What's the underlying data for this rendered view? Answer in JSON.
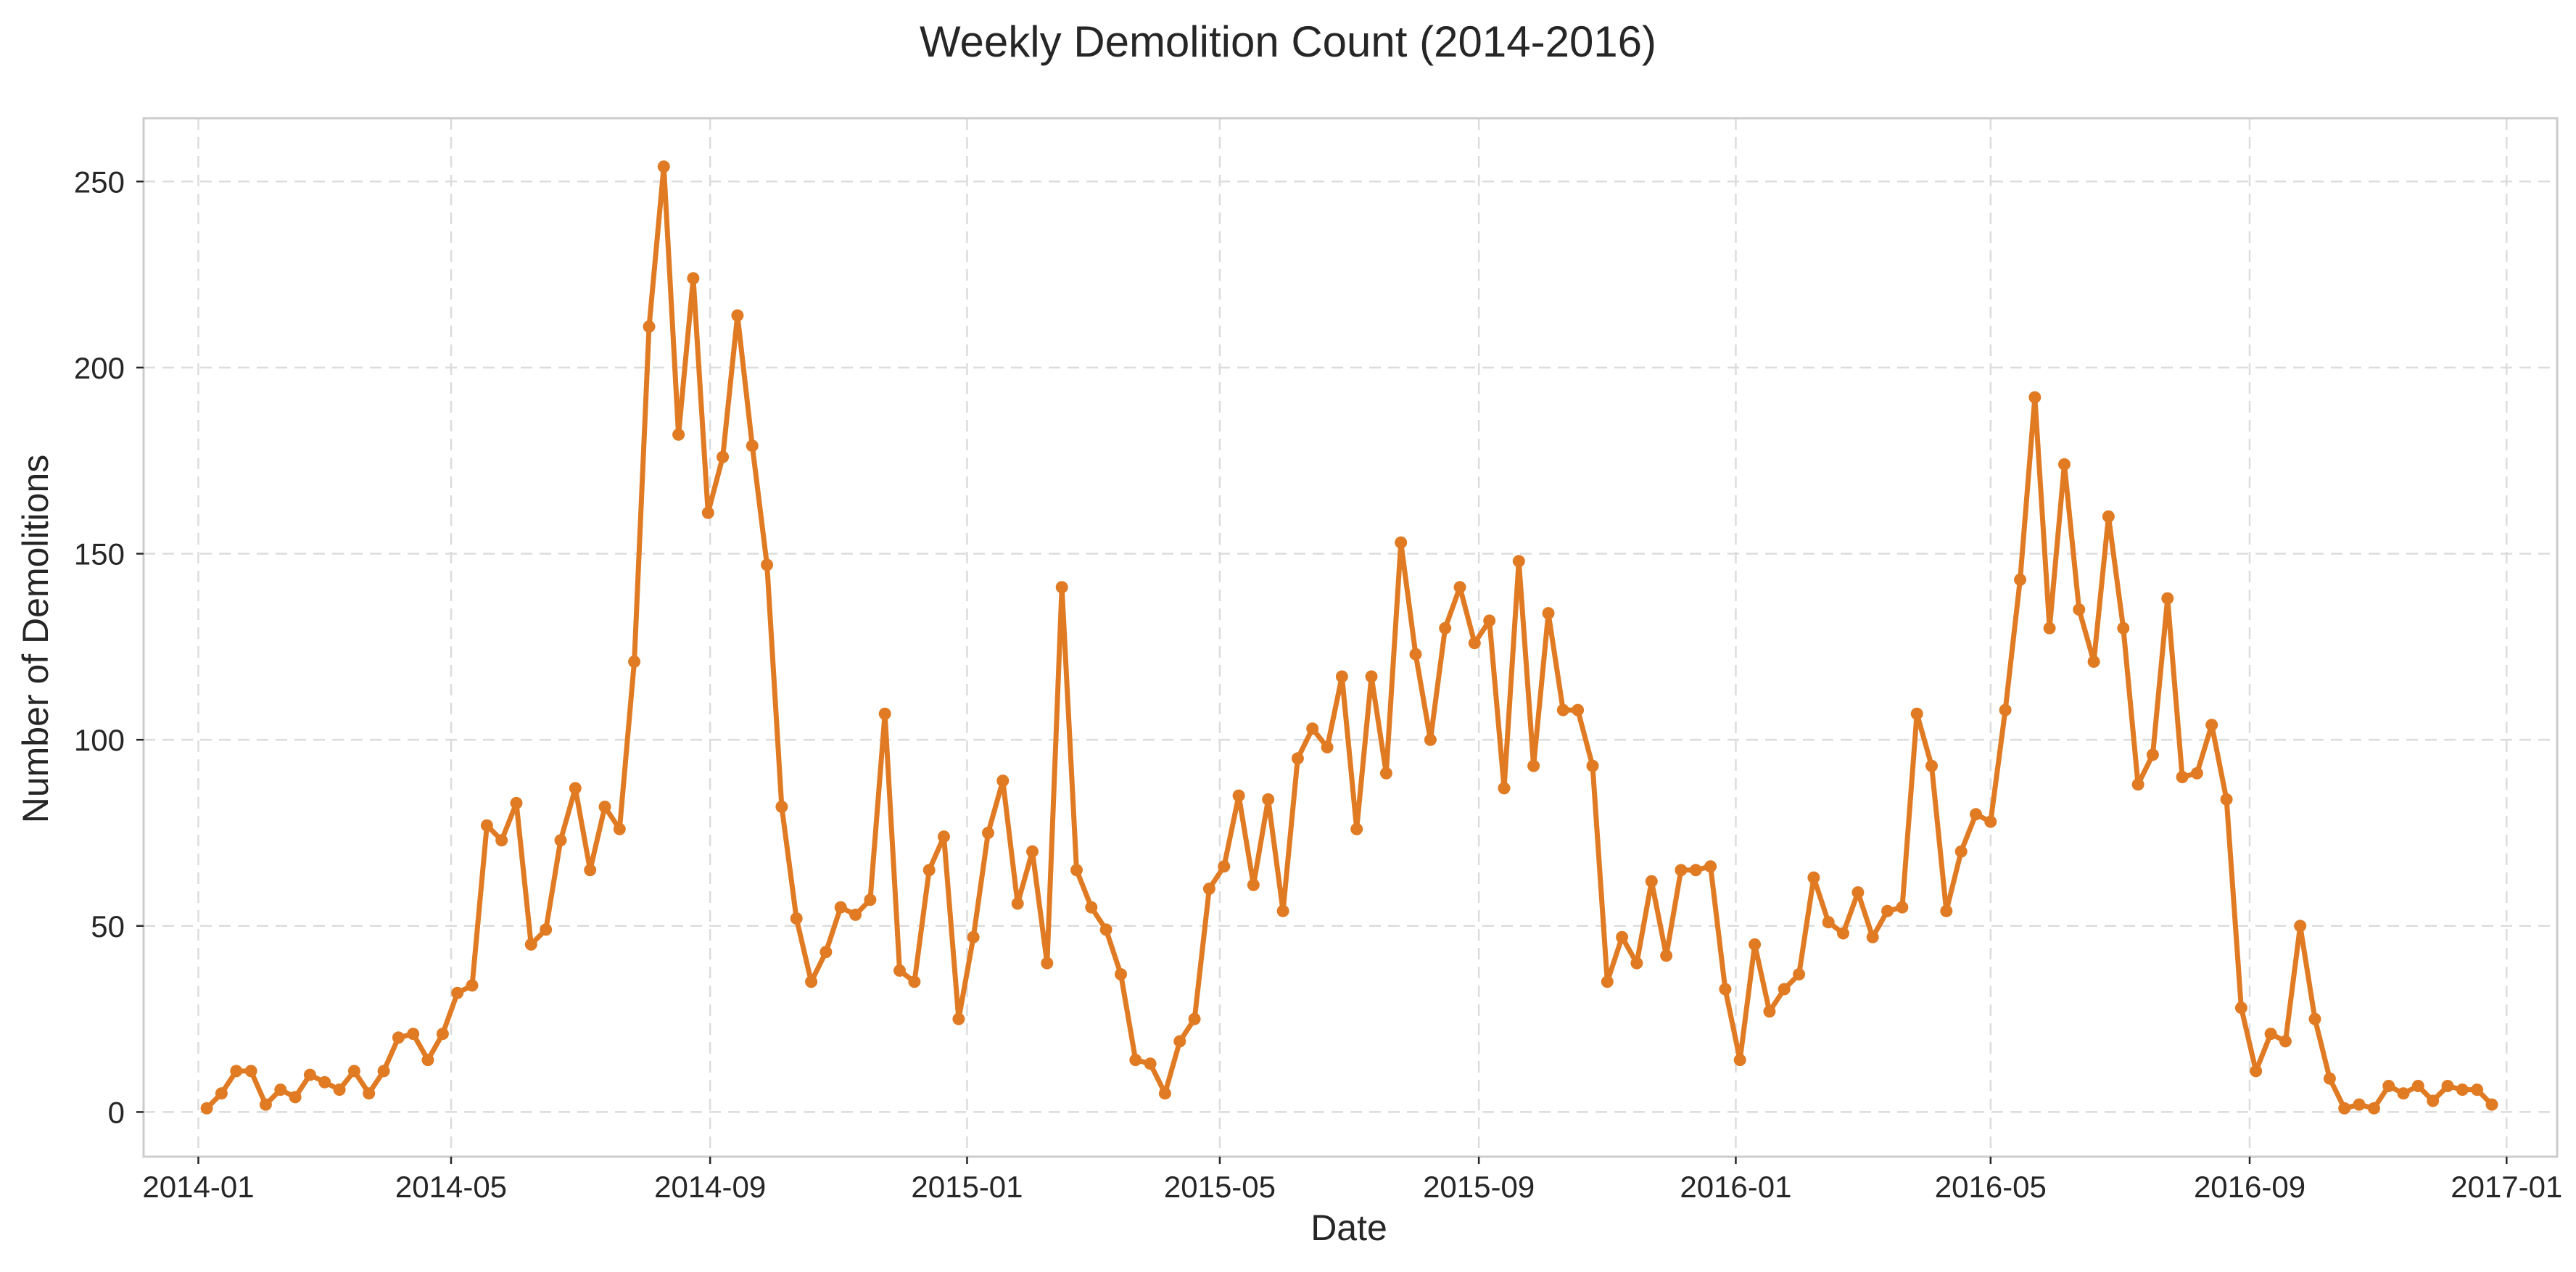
{
  "chart_data": {
    "type": "line",
    "title": "Weekly Demolition Count (2014-2016)",
    "xlabel": "Date",
    "ylabel": "Number of Demolitions",
    "x_type": "date",
    "x_start": "2014-01-05",
    "x_step_days": 7,
    "xlim": [
      "2013-12-06",
      "2017-01-25"
    ],
    "ylim": [
      -12,
      267
    ],
    "x_ticks": [
      {
        "date": "2014-01-01",
        "label": "2014-01"
      },
      {
        "date": "2014-05-01",
        "label": "2014-05"
      },
      {
        "date": "2014-09-01",
        "label": "2014-09"
      },
      {
        "date": "2015-01-01",
        "label": "2015-01"
      },
      {
        "date": "2015-05-01",
        "label": "2015-05"
      },
      {
        "date": "2015-09-01",
        "label": "2015-09"
      },
      {
        "date": "2016-01-01",
        "label": "2016-01"
      },
      {
        "date": "2016-05-01",
        "label": "2016-05"
      },
      {
        "date": "2016-09-01",
        "label": "2016-09"
      },
      {
        "date": "2017-01-01",
        "label": "2017-01"
      }
    ],
    "y_ticks": [
      0,
      50,
      100,
      150,
      200,
      250
    ],
    "grid": true,
    "series": [
      {
        "color": "#e07b24",
        "marker": "circle",
        "values": [
          1,
          5,
          11,
          11,
          2,
          6,
          4,
          10,
          8,
          6,
          11,
          5,
          11,
          20,
          21,
          14,
          21,
          32,
          34,
          77,
          73,
          83,
          45,
          49,
          73,
          87,
          65,
          82,
          76,
          121,
          211,
          254,
          182,
          224,
          161,
          176,
          214,
          179,
          147,
          82,
          52,
          35,
          43,
          55,
          53,
          57,
          107,
          38,
          35,
          65,
          74,
          25,
          47,
          75,
          89,
          56,
          70,
          40,
          141,
          65,
          55,
          49,
          37,
          14,
          13,
          5,
          19,
          25,
          60,
          66,
          85,
          61,
          84,
          54,
          95,
          103,
          98,
          117,
          76,
          117,
          91,
          153,
          123,
          100,
          130,
          141,
          126,
          132,
          87,
          148,
          93,
          134,
          108,
          108,
          93,
          35,
          47,
          40,
          62,
          42,
          65,
          65,
          66,
          33,
          14,
          45,
          27,
          33,
          37,
          63,
          51,
          48,
          59,
          47,
          54,
          55,
          107,
          93,
          54,
          70,
          80,
          78,
          108,
          143,
          192,
          130,
          174,
          135,
          121,
          160,
          130,
          88,
          96,
          138,
          90,
          91,
          104,
          84,
          28,
          11,
          21,
          19,
          50,
          25,
          9,
          1,
          2,
          1,
          7,
          5,
          7,
          3,
          7,
          6,
          6,
          2
        ]
      }
    ]
  }
}
